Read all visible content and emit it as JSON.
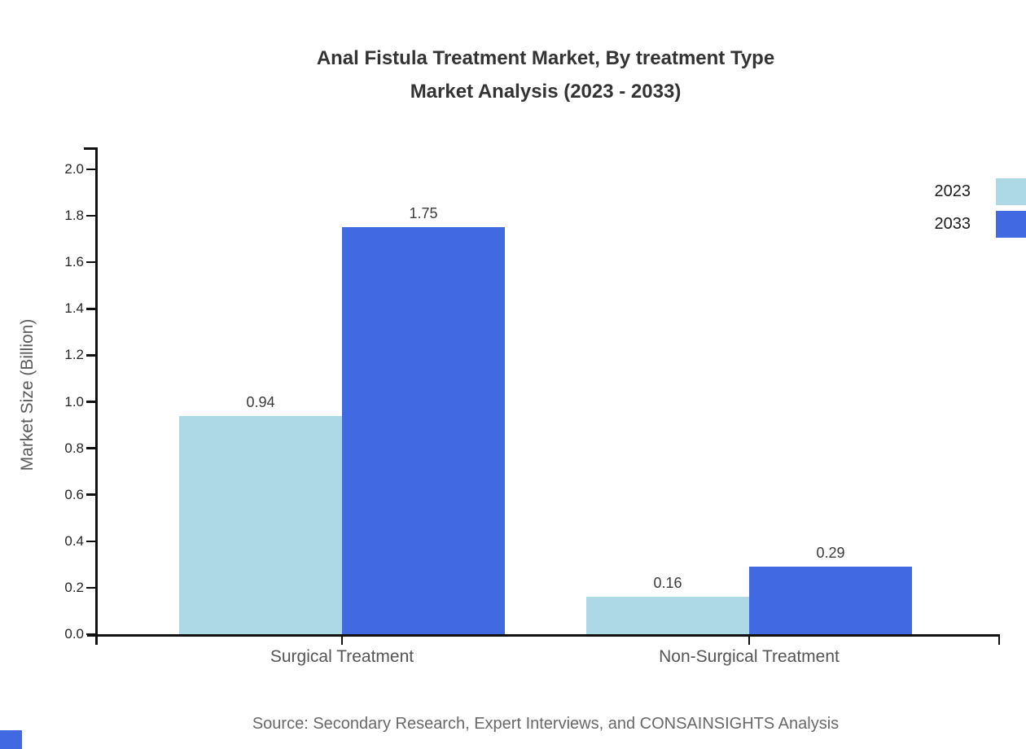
{
  "page": {
    "title_line1": "Anal Fistula Treatment Market, By treatment Type",
    "title_line2": "Market Analysis (2023 - 2033)",
    "source": "Source: Secondary Research, Expert Interviews, and CONSAINSIGHTS Analysis"
  },
  "chart_data": {
    "type": "bar",
    "title": "Anal Fistula Treatment Market, By treatment Type Market Analysis (2023 - 2033)",
    "categories": [
      "Surgical Treatment",
      "Non-Surgical Treatment"
    ],
    "series": [
      {
        "name": "2023",
        "color": "#ADD8E6",
        "values": [
          0.94,
          0.16
        ]
      },
      {
        "name": "2033",
        "color": "#4169E1",
        "values": [
          1.75,
          0.29
        ]
      }
    ],
    "value_labels": [
      [
        "0.94",
        "0.16"
      ],
      [
        "1.75",
        "0.29"
      ]
    ],
    "xlabel": "",
    "ylabel": "Market Size (Billion)",
    "ylim": [
      0.0,
      2.0
    ],
    "ytick_step": 0.2,
    "ytick_labels": [
      "0.0",
      "0.2",
      "0.4",
      "0.6",
      "0.8",
      "1.0",
      "1.2",
      "1.4",
      "1.6",
      "1.8",
      "2.0"
    ],
    "grid": false,
    "legend_position": "top-right",
    "legend": [
      "2023",
      "2033"
    ]
  }
}
